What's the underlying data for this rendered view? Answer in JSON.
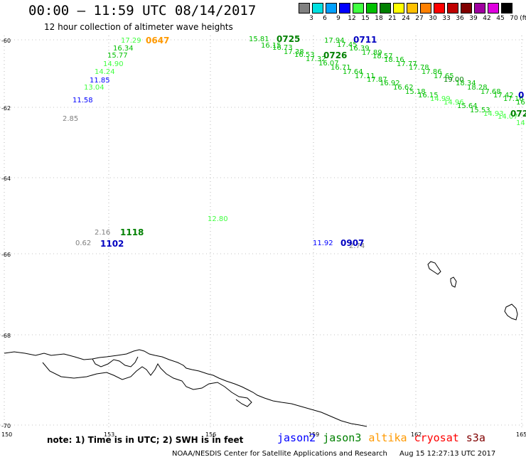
{
  "header": {
    "title": "00:00 – 11:59 UTC 08/14/2017",
    "subtitle": "12 hour collection of altimeter wave heights"
  },
  "legend": {
    "unit": "(ft)",
    "bins": [
      {
        "label": "3",
        "color": "#808080"
      },
      {
        "label": "6",
        "color": "#00e0e0"
      },
      {
        "label": "9",
        "color": "#00a0ff"
      },
      {
        "label": "12",
        "color": "#0000ff"
      },
      {
        "label": "15",
        "color": "#40ff40"
      },
      {
        "label": "18",
        "color": "#00c000"
      },
      {
        "label": "21",
        "color": "#008000"
      },
      {
        "label": "24",
        "color": "#ffff00"
      },
      {
        "label": "27",
        "color": "#ffc000"
      },
      {
        "label": "30",
        "color": "#ff8000"
      },
      {
        "label": "33",
        "color": "#ff0000"
      },
      {
        "label": "36",
        "color": "#c00000"
      },
      {
        "label": "39",
        "color": "#800000"
      },
      {
        "label": "42",
        "color": "#a000a0"
      },
      {
        "label": "45",
        "color": "#e000e0"
      },
      {
        "label": "70",
        "color": "#000000"
      }
    ]
  },
  "axes": {
    "lat_labels": [
      "-60",
      "-62",
      "-64",
      "-66",
      "-68",
      "-70"
    ],
    "lon_labels": [
      "150",
      "153",
      "156",
      "159",
      "162",
      "165"
    ]
  },
  "observations": [
    {
      "v": "17.29",
      "c": "#40ff40"
    },
    {
      "v": "16.34",
      "c": "#00c000"
    },
    {
      "v": "15.77",
      "c": "#00c000"
    },
    {
      "v": "14.90",
      "c": "#40ff40"
    },
    {
      "v": "14.24",
      "c": "#40ff40"
    },
    {
      "v": "13.04",
      "c": "#40ff40"
    },
    {
      "v": "11.85",
      "c": "#0000ff"
    },
    {
      "v": "11.58",
      "c": "#0000ff"
    },
    {
      "v": "2.85",
      "c": "#808080"
    },
    {
      "v": "15.81",
      "c": "#00c000"
    },
    {
      "v": "16.15",
      "c": "#00c000"
    },
    {
      "v": "16.73",
      "c": "#00c000"
    },
    {
      "v": "17.38",
      "c": "#00c000"
    },
    {
      "v": "16.53",
      "c": "#00c000"
    },
    {
      "v": "17.32",
      "c": "#00c000"
    },
    {
      "v": "16.07",
      "c": "#00c000"
    },
    {
      "v": "16.71",
      "c": "#00c000"
    },
    {
      "v": "17.64",
      "c": "#00c000"
    },
    {
      "v": "17.11",
      "c": "#00c000"
    },
    {
      "v": "17.87",
      "c": "#00c000"
    },
    {
      "v": "16.92",
      "c": "#00c000"
    },
    {
      "v": "16.62",
      "c": "#00c000"
    },
    {
      "v": "15.18",
      "c": "#00c000"
    },
    {
      "v": "16.15",
      "c": "#00c000"
    },
    {
      "v": "14.99",
      "c": "#40ff40"
    },
    {
      "v": "14.96",
      "c": "#40ff40"
    },
    {
      "v": "15.64",
      "c": "#00c000"
    },
    {
      "v": "15.53",
      "c": "#00c000"
    },
    {
      "v": "14.93",
      "c": "#40ff40"
    },
    {
      "v": "14.07",
      "c": "#40ff40"
    },
    {
      "v": "14",
      "c": "#40ff40"
    },
    {
      "v": "17.94",
      "c": "#00c000"
    },
    {
      "v": "17.45",
      "c": "#00c000"
    },
    {
      "v": "16.39",
      "c": "#00c000"
    },
    {
      "v": "17.89",
      "c": "#00c000"
    },
    {
      "v": "18.57",
      "c": "#00c000"
    },
    {
      "v": "18.16",
      "c": "#00c000"
    },
    {
      "v": "17.77",
      "c": "#00c000"
    },
    {
      "v": "17.78",
      "c": "#00c000"
    },
    {
      "v": "17.86",
      "c": "#00c000"
    },
    {
      "v": "17.65",
      "c": "#00c000"
    },
    {
      "v": "19.00",
      "c": "#008000"
    },
    {
      "v": "18.34",
      "c": "#00c000"
    },
    {
      "v": "18.28",
      "c": "#00c000"
    },
    {
      "v": "17.68",
      "c": "#00c000"
    },
    {
      "v": "17.42",
      "c": "#00c000"
    },
    {
      "v": "17.16",
      "c": "#00c000"
    },
    {
      "v": "16",
      "c": "#00c000"
    },
    {
      "v": "12.80",
      "c": "#40ff40"
    },
    {
      "v": "2.16",
      "c": "#808080"
    },
    {
      "v": "0.62",
      "c": "#808080"
    },
    {
      "v": "11.92",
      "c": "#0000ff"
    },
    {
      "v": "2.74",
      "c": "#808080"
    }
  ],
  "pass_labels": [
    {
      "t": "0647",
      "c": "#ff9900"
    },
    {
      "t": "0725",
      "c": "#008000"
    },
    {
      "t": "0711",
      "c": "#0000c0"
    },
    {
      "t": "0726",
      "c": "#008000"
    },
    {
      "t": "0",
      "c": "#0000c0"
    },
    {
      "t": "072",
      "c": "#008000"
    },
    {
      "t": "1118",
      "c": "#008000"
    },
    {
      "t": "1102",
      "c": "#0000c0"
    },
    {
      "t": "0907",
      "c": "#0000c0"
    }
  ],
  "footer": {
    "note": "note:  1)  Time is in UTC;  2)  SWH is in feet",
    "satellites": [
      {
        "name": "jason2",
        "color": "#0000ff"
      },
      {
        "name": "jason3",
        "color": "#008000"
      },
      {
        "name": "altika",
        "color": "#ff9900"
      },
      {
        "name": "cryosat",
        "color": "#ff0000"
      },
      {
        "name": "s3a",
        "color": "#800000"
      }
    ],
    "credit": "NOAA/NESDIS Center for Satellite Applications and Research",
    "timestamp": "Aug 15 12:27:13 UTC 2017"
  }
}
